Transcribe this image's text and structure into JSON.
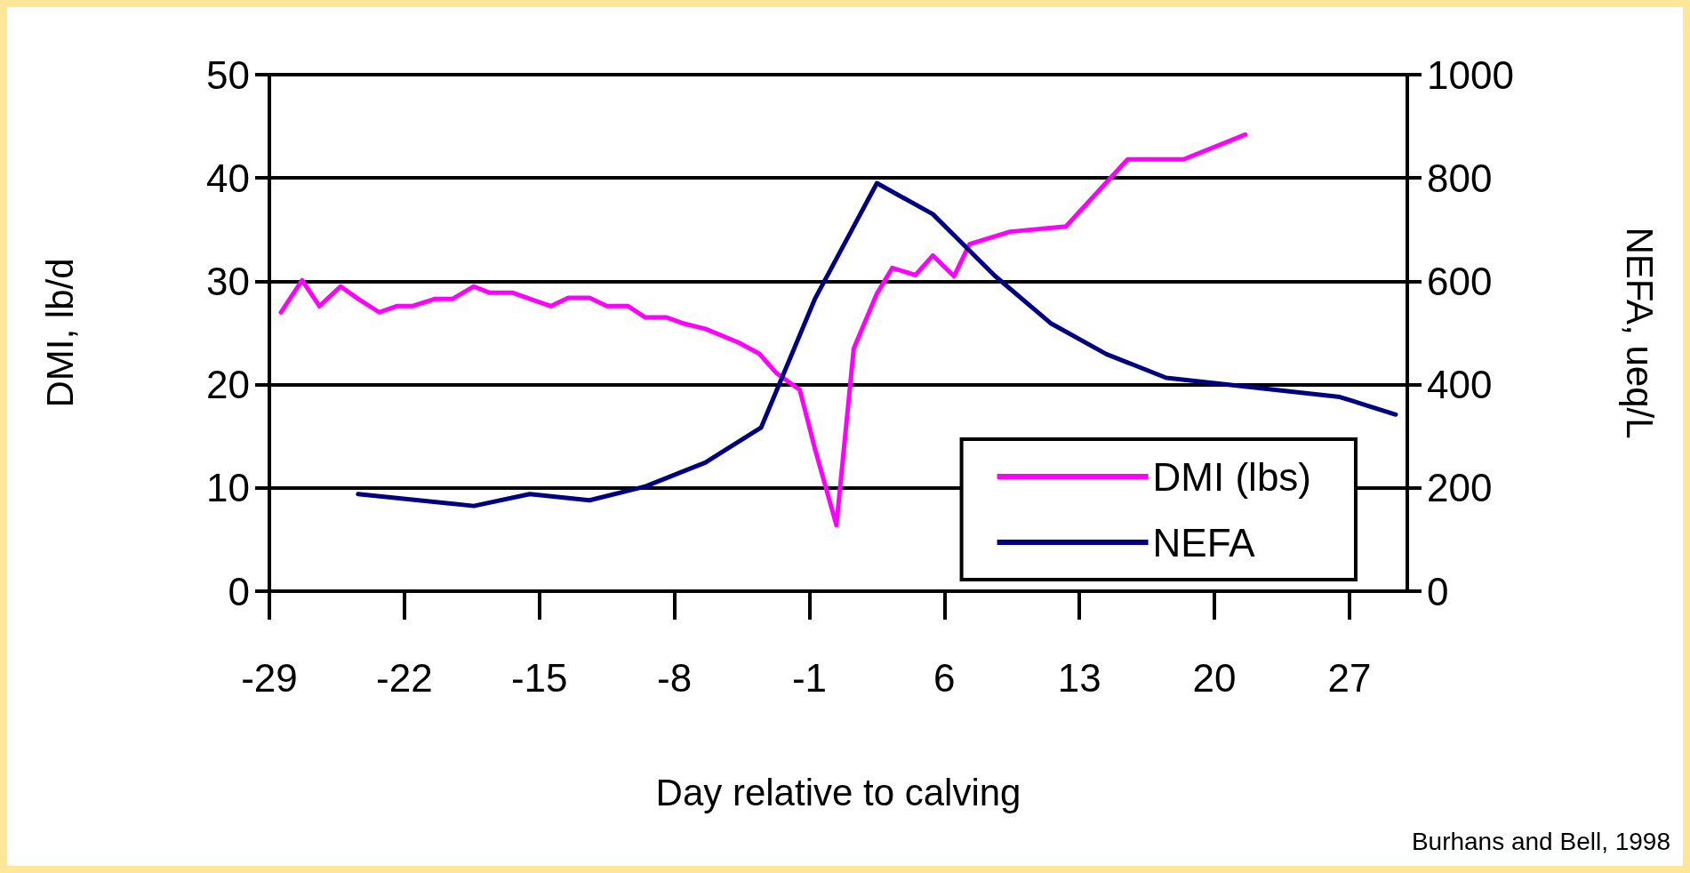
{
  "chart_data": {
    "type": "line",
    "xlabel": "Day relative to calving",
    "ylabel": "DMI, lb/d",
    "y2label": "NEFA, ueq/L",
    "xlim": [
      -29,
      30
    ],
    "xticks": [
      -29,
      -22,
      -15,
      -8,
      -1,
      6,
      13,
      20,
      27
    ],
    "ylim": [
      0,
      50
    ],
    "yticks": [
      0,
      10,
      20,
      30,
      40,
      50
    ],
    "y2lim": [
      0,
      1000
    ],
    "y2ticks": [
      0,
      200,
      400,
      600,
      800,
      1000
    ],
    "grid": "y",
    "legend": "bottom right",
    "marker": "none",
    "line_style": "solid",
    "annotations": [
      "Burhans and Bell, 1998"
    ],
    "series": [
      {
        "name": "DMI (lbs)",
        "color": "#ff00ff",
        "x": [
          -28.4,
          -27.3,
          -26.4,
          -25.3,
          -24.4,
          -23.3,
          -22.4,
          -21.6,
          -20.4,
          -19.5,
          -18.4,
          -17.6,
          -16.4,
          -15.5,
          -14.4,
          -13.5,
          -12.4,
          -11.5,
          -10.4,
          -9.5,
          -8.4,
          -7.5,
          -6.4,
          -4.7,
          -3.6,
          -2.7,
          -1.5,
          -0.7,
          0.4,
          1.3,
          2.5,
          3.3,
          4.5,
          5.4,
          6.5,
          7.3,
          9.4,
          12.3,
          15.5,
          18.4,
          21.6
        ],
        "values": [
          27.0,
          30.1,
          27.6,
          29.5,
          28.3,
          27.0,
          27.6,
          27.6,
          28.3,
          28.3,
          29.5,
          28.9,
          28.9,
          28.3,
          27.6,
          28.4,
          28.4,
          27.6,
          27.6,
          26.5,
          26.5,
          25.9,
          25.4,
          24.1,
          23.0,
          21.1,
          19.5,
          13.7,
          6.4,
          23.5,
          28.8,
          31.3,
          30.6,
          32.5,
          30.5,
          33.6,
          34.8,
          35.3,
          41.8,
          41.8,
          44.2
        ]
      },
      {
        "name": "NEFA",
        "color": "#000080",
        "axis": "y2",
        "x": [
          -24.4,
          -18.4,
          -15.5,
          -12.4,
          -9.5,
          -6.4,
          -3.5,
          -0.7,
          2.5,
          5.4,
          8.6,
          11.5,
          14.4,
          17.5,
          26.5,
          29.4
        ],
        "values": [
          188,
          165,
          188,
          176,
          203,
          249,
          317,
          567,
          790,
          730,
          611,
          519,
          459,
          413,
          376,
          342
        ]
      }
    ]
  }
}
